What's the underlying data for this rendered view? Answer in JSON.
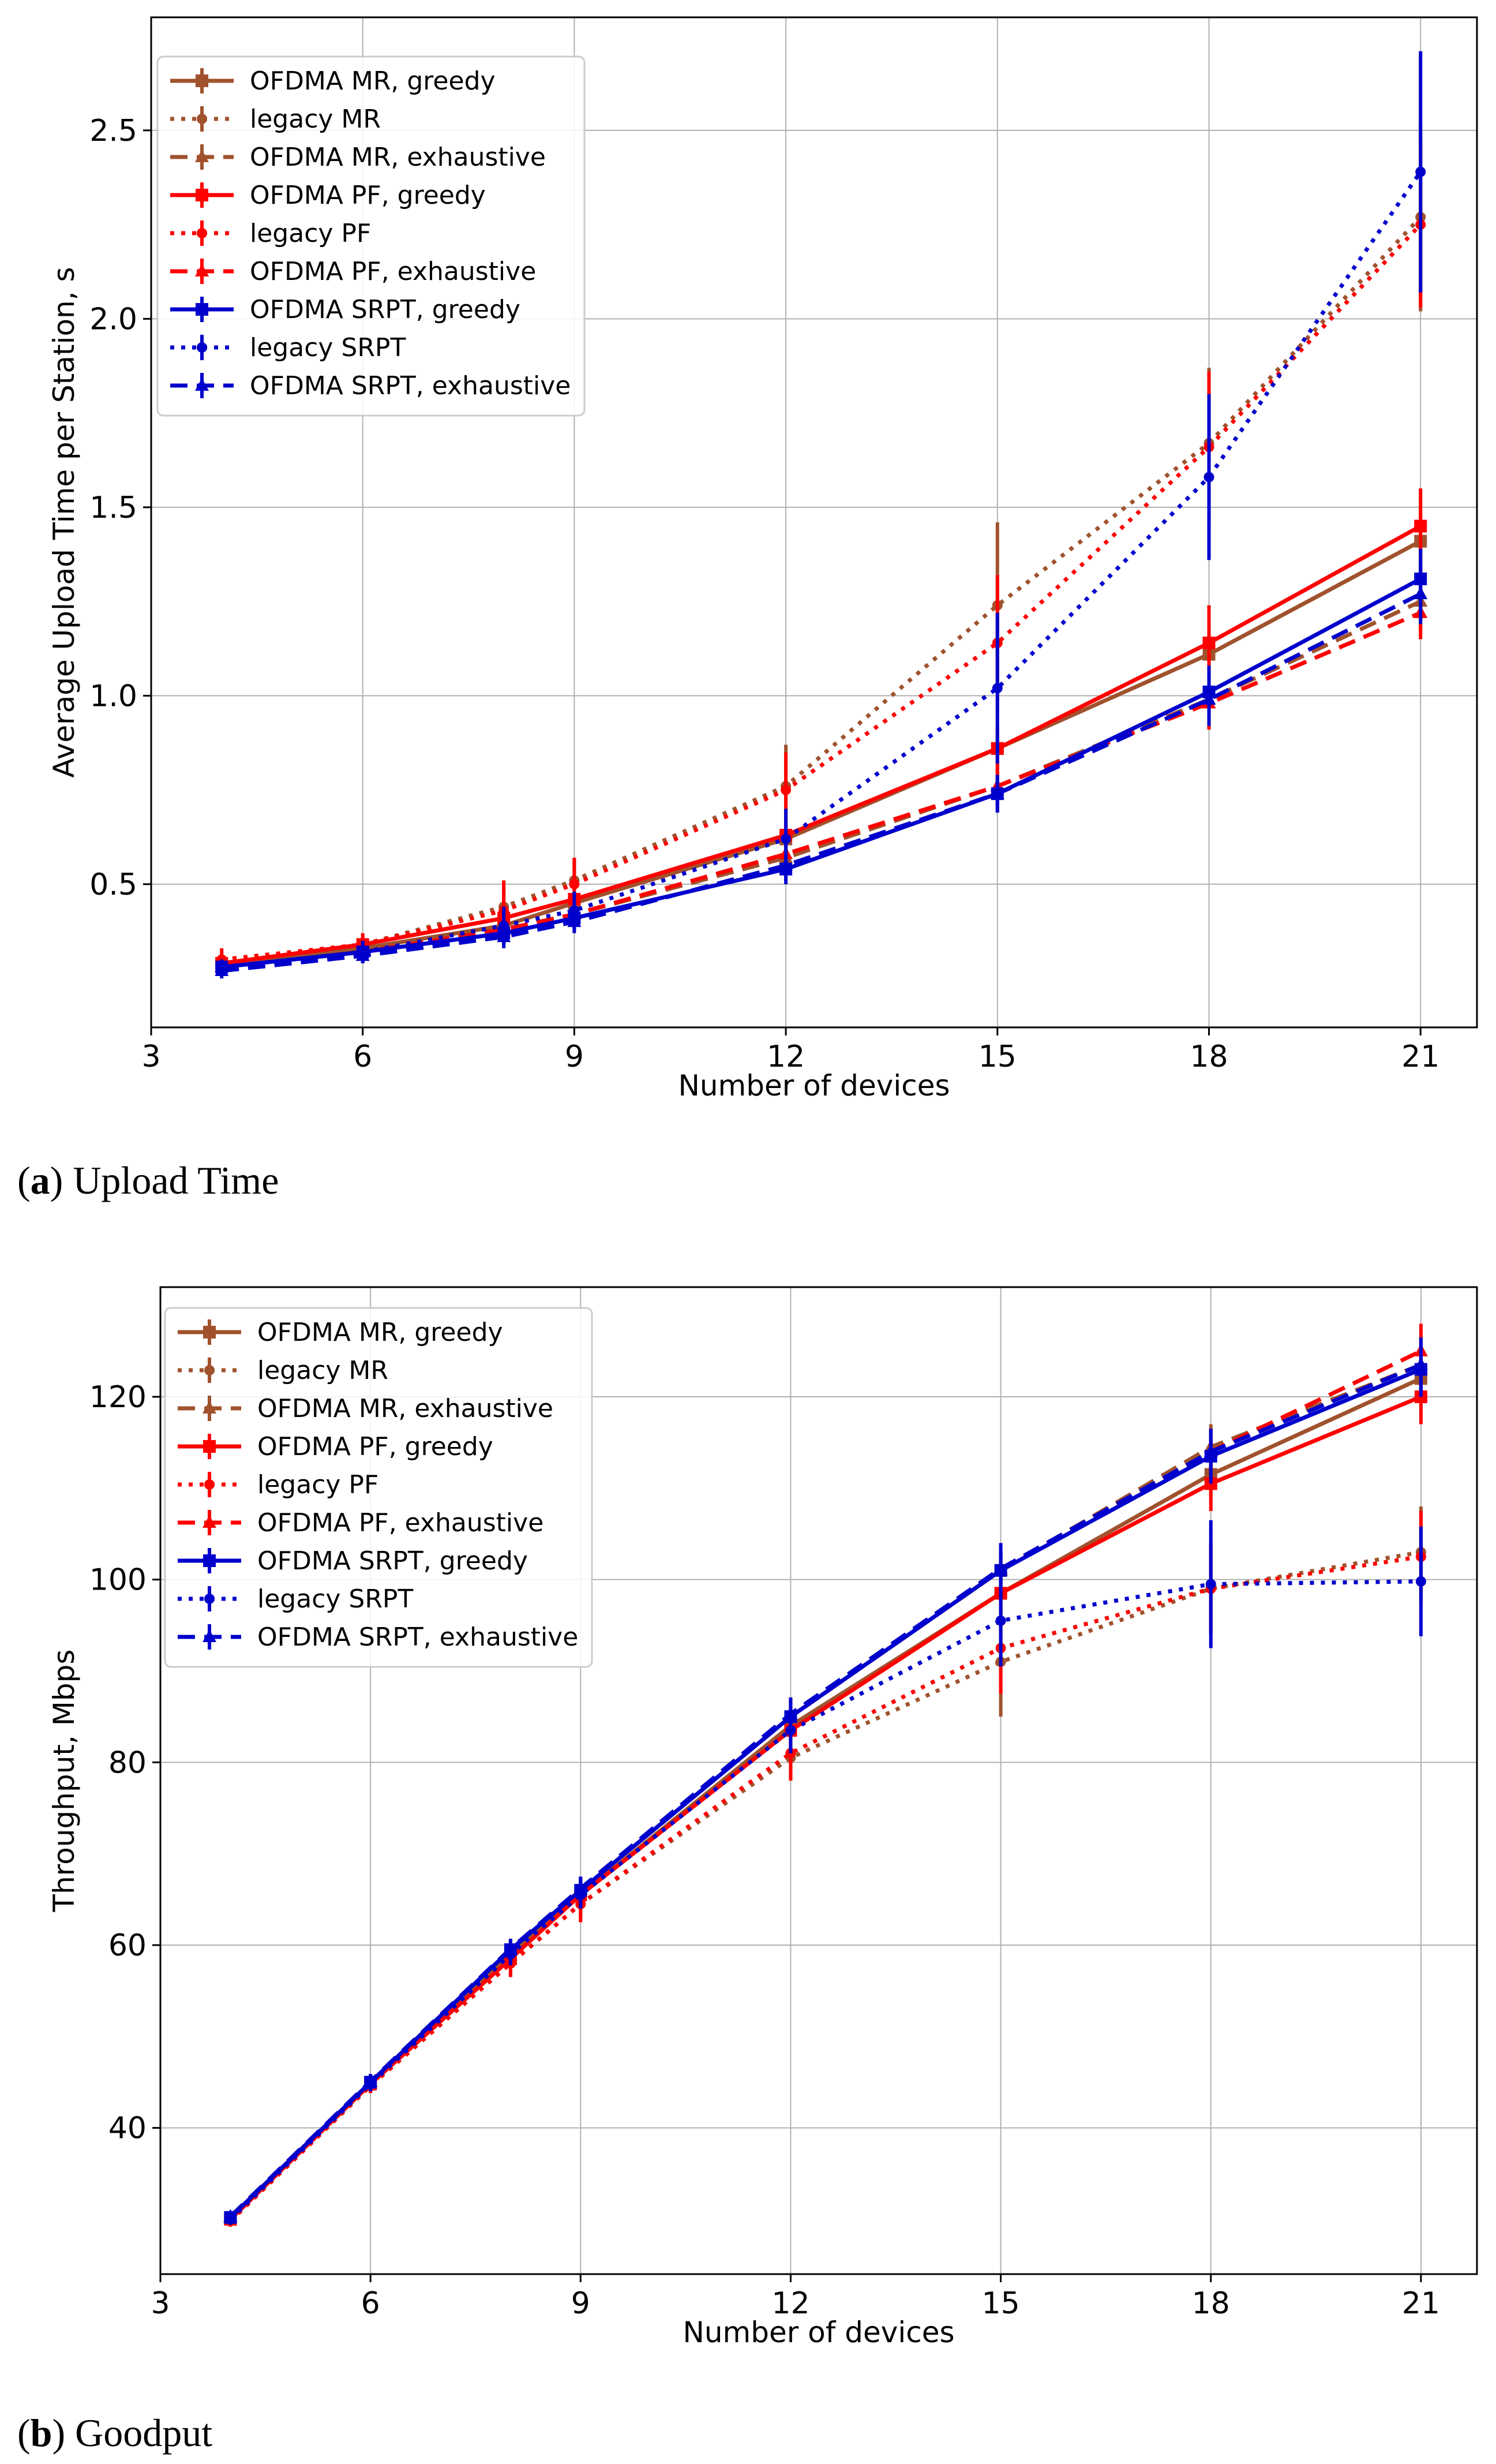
{
  "chart_data": [
    {
      "type": "line",
      "panel": "a",
      "caption_letter": "a",
      "caption_text": "Upload Time",
      "title": "",
      "xlabel": "Number of devices",
      "ylabel": "Average Upload Time per Station, s",
      "xlim": [
        3,
        21.8
      ],
      "ylim": [
        0.12,
        2.8
      ],
      "xticks": [
        3,
        6,
        9,
        12,
        15,
        18,
        21
      ],
      "yticks": [
        0.5,
        1.0,
        1.5,
        2.0,
        2.5
      ],
      "ytick_labels": [
        "0.5",
        "1.0",
        "1.5",
        "2.0",
        "2.5"
      ],
      "grid": true,
      "legend_position": "top-left",
      "x": [
        4,
        6,
        8,
        9,
        12,
        15,
        18,
        21
      ],
      "series": [
        {
          "name": "OFDMA MR, greedy",
          "color": "#a0522d",
          "dash": "solid",
          "values": [
            0.29,
            0.33,
            0.39,
            0.45,
            0.62,
            0.86,
            1.11,
            1.41
          ],
          "errors": [
            0.02,
            0.02,
            0.03,
            0.03,
            0.04,
            0.05,
            0.07,
            0.08
          ]
        },
        {
          "name": "legacy MR",
          "color": "#a0522d",
          "dash": "dotted",
          "values": [
            0.29,
            0.34,
            0.44,
            0.51,
            0.76,
            1.24,
            1.67,
            2.27
          ],
          "errors": [
            0.02,
            0.02,
            0.05,
            0.06,
            0.11,
            0.22,
            0.2,
            0.25
          ]
        },
        {
          "name": "OFDMA MR, exhaustive",
          "color": "#a0522d",
          "dash": "dashed",
          "values": [
            0.28,
            0.32,
            0.38,
            0.42,
            0.57,
            0.76,
            0.99,
            1.25
          ],
          "errors": [
            0.02,
            0.02,
            0.03,
            0.03,
            0.04,
            0.05,
            0.07,
            0.08
          ]
        },
        {
          "name": "OFDMA PF, greedy",
          "color": "#ff0000",
          "dash": "solid",
          "values": [
            0.29,
            0.34,
            0.41,
            0.46,
            0.63,
            0.86,
            1.14,
            1.45
          ],
          "errors": [
            0.02,
            0.02,
            0.03,
            0.03,
            0.04,
            0.06,
            0.1,
            0.1
          ]
        },
        {
          "name": "legacy PF",
          "color": "#ff0000",
          "dash": "dotted",
          "values": [
            0.3,
            0.34,
            0.43,
            0.5,
            0.75,
            1.14,
            1.66,
            2.25
          ],
          "errors": [
            0.03,
            0.03,
            0.08,
            0.07,
            0.1,
            0.18,
            0.2,
            0.22
          ]
        },
        {
          "name": "OFDMA PF, exhaustive",
          "color": "#ff0000",
          "dash": "dashed",
          "values": [
            0.28,
            0.32,
            0.38,
            0.42,
            0.58,
            0.76,
            0.98,
            1.22
          ],
          "errors": [
            0.02,
            0.02,
            0.03,
            0.03,
            0.04,
            0.05,
            0.07,
            0.07
          ]
        },
        {
          "name": "OFDMA SRPT, greedy",
          "color": "#0000cd",
          "dash": "solid",
          "values": [
            0.28,
            0.32,
            0.37,
            0.41,
            0.54,
            0.74,
            1.01,
            1.31
          ],
          "errors": [
            0.02,
            0.02,
            0.03,
            0.03,
            0.04,
            0.05,
            0.07,
            0.08
          ]
        },
        {
          "name": "legacy SRPT",
          "color": "#0000cd",
          "dash": "dotted",
          "values": [
            0.28,
            0.32,
            0.39,
            0.43,
            0.62,
            1.02,
            1.58,
            2.39
          ],
          "errors": [
            0.02,
            0.03,
            0.05,
            0.05,
            0.08,
            0.2,
            0.22,
            0.32
          ]
        },
        {
          "name": "OFDMA SRPT, exhaustive",
          "color": "#0000cd",
          "dash": "dashed",
          "values": [
            0.27,
            0.31,
            0.36,
            0.4,
            0.55,
            0.74,
            0.99,
            1.27
          ],
          "errors": [
            0.02,
            0.02,
            0.03,
            0.03,
            0.04,
            0.05,
            0.07,
            0.08
          ]
        }
      ]
    },
    {
      "type": "line",
      "panel": "b",
      "caption_letter": "b",
      "caption_text": "Goodput",
      "title": "",
      "xlabel": "Number of devices",
      "ylabel": "Throughput, Mbps",
      "xlim": [
        3,
        21.8
      ],
      "ylim": [
        24,
        132
      ],
      "xticks": [
        3,
        6,
        9,
        12,
        15,
        18,
        21
      ],
      "yticks": [
        40,
        60,
        80,
        100,
        120
      ],
      "ytick_labels": [
        "40",
        "60",
        "80",
        "100",
        "120"
      ],
      "grid": true,
      "legend_position": "top-left",
      "x": [
        4,
        6,
        8,
        9,
        12,
        15,
        18,
        21
      ],
      "series": [
        {
          "name": "OFDMA MR, greedy",
          "color": "#a0522d",
          "dash": "solid",
          "values": [
            30.0,
            44.8,
            59.0,
            65.5,
            84.0,
            98.5,
            111.5,
            122.0
          ],
          "errors": [
            0.6,
            0.8,
            1.0,
            1.2,
            1.8,
            2.0,
            2.5,
            3.0
          ]
        },
        {
          "name": "legacy MR",
          "color": "#a0522d",
          "dash": "dotted",
          "values": [
            29.8,
            44.6,
            58.0,
            64.5,
            80.5,
            91.0,
            99.0,
            103.0
          ],
          "errors": [
            0.6,
            0.8,
            1.2,
            1.5,
            2.5,
            6.0,
            5.0,
            5.0
          ]
        },
        {
          "name": "OFDMA MR, exhaustive",
          "color": "#a0522d",
          "dash": "dashed",
          "values": [
            30.2,
            45.0,
            59.5,
            66.0,
            85.0,
            101.0,
            114.5,
            123.5
          ],
          "errors": [
            0.6,
            0.8,
            1.0,
            1.2,
            1.8,
            2.0,
            2.5,
            3.0
          ]
        },
        {
          "name": "OFDMA PF, greedy",
          "color": "#ff0000",
          "dash": "solid",
          "values": [
            30.0,
            44.8,
            58.5,
            65.5,
            83.5,
            98.5,
            110.5,
            120.0
          ],
          "errors": [
            0.6,
            0.8,
            1.2,
            1.5,
            2.0,
            2.5,
            3.0,
            3.0
          ]
        },
        {
          "name": "legacy PF",
          "color": "#ff0000",
          "dash": "dotted",
          "values": [
            29.8,
            44.6,
            58.0,
            64.5,
            81.0,
            92.5,
            99.0,
            102.5
          ],
          "errors": [
            0.6,
            0.8,
            1.5,
            2.0,
            3.0,
            5.0,
            5.0,
            5.0
          ]
        },
        {
          "name": "OFDMA PF, exhaustive",
          "color": "#ff0000",
          "dash": "dashed",
          "values": [
            30.2,
            45.0,
            59.5,
            66.0,
            85.0,
            101.0,
            114.0,
            125.0
          ],
          "errors": [
            0.6,
            0.8,
            1.0,
            1.2,
            1.8,
            2.0,
            2.5,
            3.0
          ]
        },
        {
          "name": "OFDMA SRPT, greedy",
          "color": "#0000cd",
          "dash": "solid",
          "values": [
            30.2,
            45.0,
            59.5,
            66.0,
            85.0,
            101.0,
            113.5,
            123.0
          ],
          "errors": [
            0.6,
            0.8,
            1.2,
            1.5,
            2.0,
            3.0,
            3.0,
            3.0
          ]
        },
        {
          "name": "legacy SRPT",
          "color": "#0000cd",
          "dash": "dotted",
          "values": [
            30.0,
            44.8,
            59.0,
            65.5,
            83.5,
            95.5,
            99.5,
            99.8
          ],
          "errors": [
            0.6,
            0.8,
            1.2,
            1.5,
            2.5,
            5.0,
            7.0,
            6.0
          ]
        },
        {
          "name": "OFDMA SRPT, exhaustive",
          "color": "#0000cd",
          "dash": "dashed",
          "values": [
            30.3,
            45.1,
            59.6,
            66.2,
            85.3,
            101.2,
            114.0,
            123.5
          ],
          "errors": [
            0.6,
            0.8,
            1.0,
            1.2,
            1.8,
            2.0,
            2.5,
            3.0
          ]
        }
      ]
    }
  ]
}
